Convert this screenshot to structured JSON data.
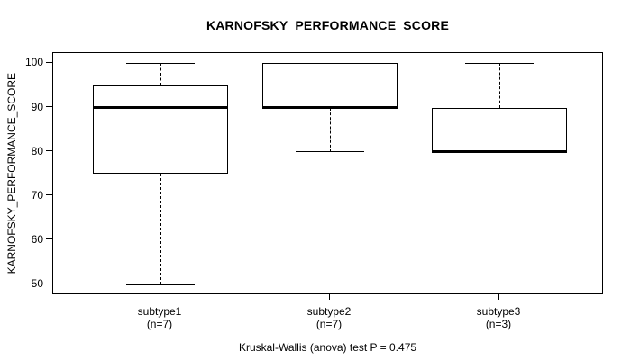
{
  "chart_data": {
    "type": "boxplot",
    "title": "KARNOFSKY_PERFORMANCE_SCORE",
    "ylabel": "KARNOFSKY_PERFORMANCE_SCORE",
    "xlabel": "",
    "ylim": [
      50,
      100
    ],
    "yticks": [
      50,
      60,
      70,
      80,
      90,
      100
    ],
    "grid": false,
    "legend": "none",
    "groups": [
      {
        "label": "subtype1",
        "sublabel": "(n=7)",
        "n": 7,
        "min": 50,
        "q1": 75,
        "median": 90,
        "q3": 95,
        "max": 100
      },
      {
        "label": "subtype2",
        "sublabel": "(n=7)",
        "n": 7,
        "min": 80,
        "q1": 90,
        "median": 90,
        "q3": 100,
        "max": 100
      },
      {
        "label": "subtype3",
        "sublabel": "(n=3)",
        "n": 3,
        "min": 80,
        "q1": 80,
        "median": 80,
        "q3": 90,
        "max": 100
      }
    ],
    "annotation": "Kruskal-Wallis (anova) test P = 0.475",
    "colors": {
      "foreground": "#000000",
      "background": "#ffffff",
      "box_fill": "#ffffff",
      "box_border": "#000000",
      "median_line": "#000000"
    }
  }
}
